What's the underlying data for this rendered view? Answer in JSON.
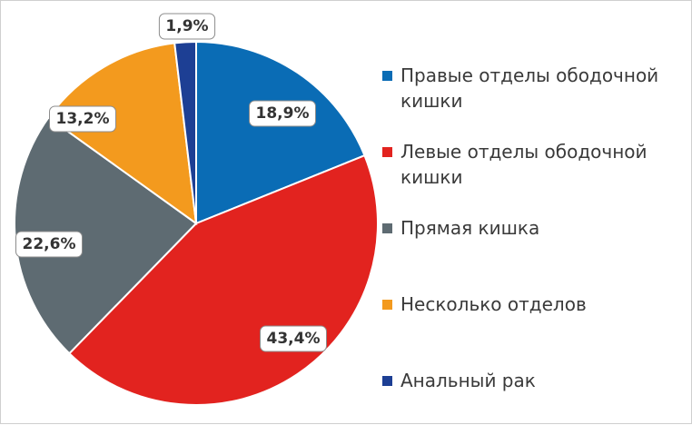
{
  "chart_data": {
    "type": "pie",
    "title": "",
    "start_angle_deg": 0,
    "direction": "clockwise",
    "legend_position": "right",
    "slices": [
      {
        "name": "Правые отделы ободочной кишки",
        "value": 18.9,
        "label": "18,9%",
        "color": "#0a6cb5"
      },
      {
        "name": "Левые отделы ободочной кишки",
        "value": 43.4,
        "label": "43,4%",
        "color": "#e2231f"
      },
      {
        "name": "Прямая кишка",
        "value": 22.6,
        "label": "22,6%",
        "color": "#5e6b72"
      },
      {
        "name": "Несколько отделов",
        "value": 13.2,
        "label": "13,2%",
        "color": "#f39a1e"
      },
      {
        "name": "Анальный рак",
        "value": 1.9,
        "label": "1,9%",
        "color": "#1d3f94"
      }
    ]
  }
}
